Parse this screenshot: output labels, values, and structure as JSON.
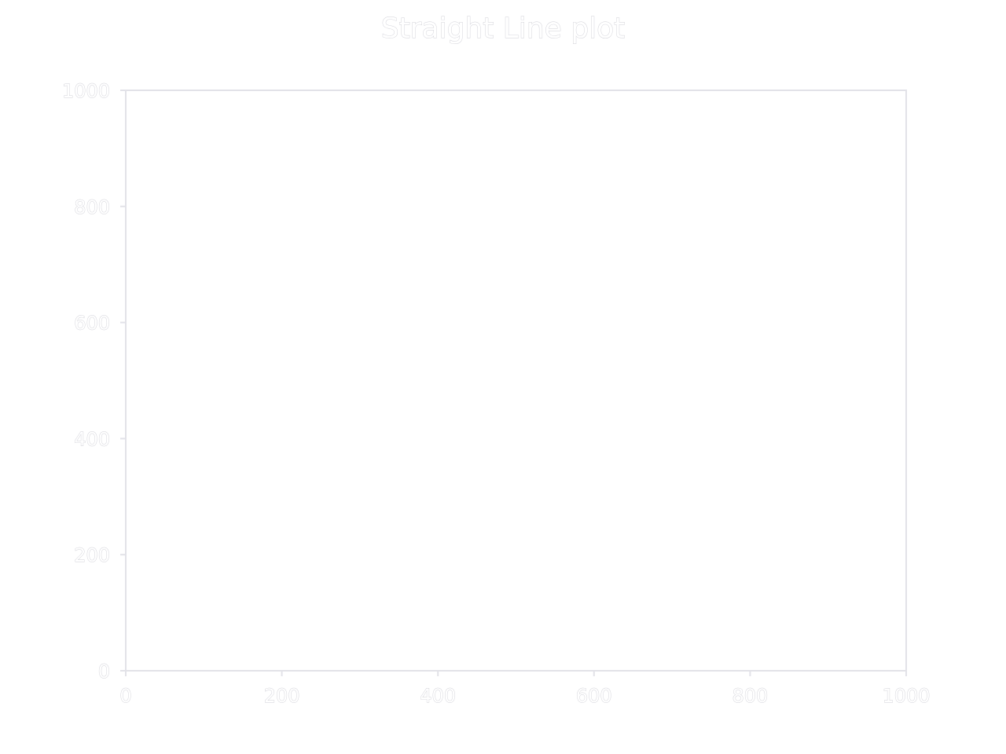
{
  "chart_data": {
    "type": "line",
    "title": "Straight Line plot",
    "xlabel": "",
    "ylabel": "",
    "xlim": [
      0,
      1000
    ],
    "ylim": [
      0,
      1000
    ],
    "x_ticks": [
      "0",
      "200",
      "400",
      "600",
      "800",
      "1000"
    ],
    "y_ticks": [
      "0",
      "200",
      "400",
      "600",
      "800",
      "1000"
    ],
    "series": [],
    "grid": false,
    "legend": "none"
  },
  "colors": {
    "background": "#ffffff",
    "axis": "#e2e2e8",
    "text_outline": "#cfcfd6"
  }
}
